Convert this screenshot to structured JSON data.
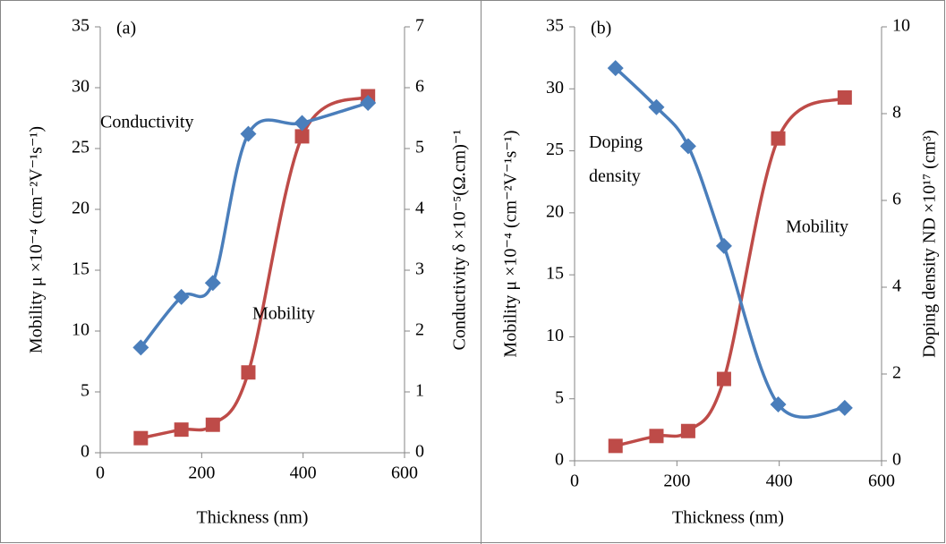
{
  "chart_data": [
    {
      "type": "line",
      "title": "(a)",
      "xlabel": "Thickness (nm)",
      "ylabel": "Mobility μ ×10⁻⁴ (cm⁻²V⁻¹s⁻¹)",
      "y2label": "Conductivity δ ×10⁻⁵(Ω.cm)⁻¹",
      "x": [
        80,
        160,
        222,
        292,
        398,
        528
      ],
      "xlim": [
        0,
        600
      ],
      "xticks": [
        0,
        200,
        400,
        600
      ],
      "ylim": [
        0,
        35
      ],
      "yticks": [
        0,
        5,
        10,
        15,
        20,
        25,
        30,
        35
      ],
      "y2lim": [
        0,
        7
      ],
      "y2ticks": [
        0,
        1,
        2,
        3,
        4,
        5,
        6,
        7
      ],
      "series": [
        {
          "name": "Mobility",
          "color": "#be4b48",
          "marker": "square",
          "values": [
            1.2,
            1.9,
            2.3,
            6.6,
            26,
            29.3
          ]
        },
        {
          "name": "Conductivity",
          "color": "#4a7ebb",
          "marker": "diamond",
          "axis": "y2",
          "values": [
            1.73,
            2.56,
            2.79,
            5.24,
            5.42,
            5.75
          ]
        }
      ]
    },
    {
      "type": "line",
      "title": "(b)",
      "xlabel": "Thickness (nm)",
      "ylabel": "Mobility μ ×10⁻⁴ (cm⁻²V⁻¹s⁻¹)",
      "y2label": "Doping density ND ×10¹⁷ (cm³)",
      "x": [
        80,
        160,
        222,
        292,
        398,
        528
      ],
      "xlim": [
        0,
        600
      ],
      "xticks": [
        0,
        200,
        400,
        600
      ],
      "ylim": [
        0,
        35
      ],
      "yticks": [
        0,
        5,
        10,
        15,
        20,
        25,
        30,
        35
      ],
      "y2lim": [
        0,
        10
      ],
      "y2ticks": [
        0,
        2,
        4,
        6,
        8,
        10
      ],
      "series": [
        {
          "name": "Mobility",
          "color": "#be4b48",
          "marker": "square",
          "values": [
            1.2,
            2.0,
            2.4,
            6.6,
            26,
            29.3
          ]
        },
        {
          "name": "Doping density",
          "color": "#4a7ebb",
          "marker": "diamond",
          "axis": "y2",
          "values": [
            9.05,
            8.15,
            7.25,
            4.95,
            1.3,
            1.22
          ]
        }
      ]
    }
  ]
}
